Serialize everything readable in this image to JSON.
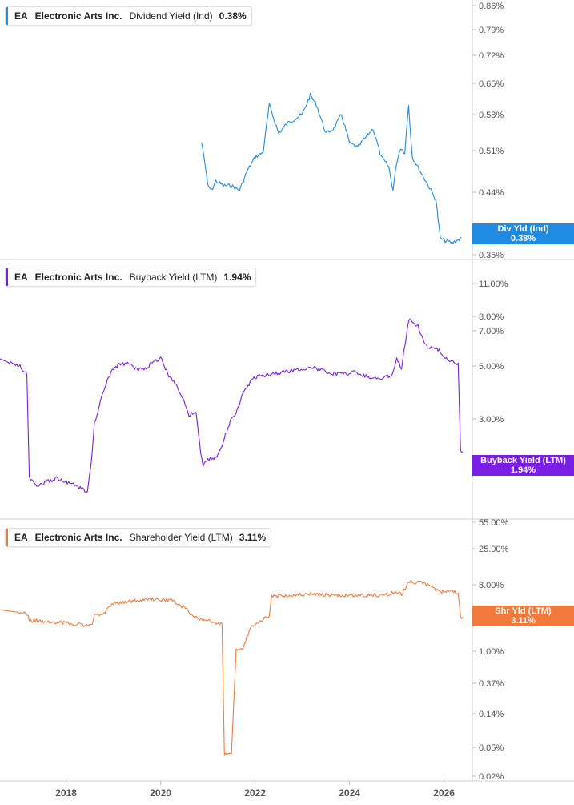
{
  "x_axis": {
    "ticks": [
      "2018",
      "2020",
      "2022",
      "2024",
      "2026"
    ]
  },
  "panels": [
    {
      "ticker": "EA",
      "company": "Electronic Arts Inc.",
      "metric": "Dividend Yield (Ind)",
      "value": "0.38%",
      "color": "#1f8be3",
      "tag_label": "Div Yld (Ind)",
      "tag_value": "0.38%",
      "y_ticks": [
        "0.86%",
        "0.79%",
        "0.72%",
        "0.65%",
        "0.58%",
        "0.51%",
        "0.44%",
        "0.37%",
        "0.35%"
      ]
    },
    {
      "ticker": "EA",
      "company": "Electronic Arts Inc.",
      "metric": "Buyback Yield (LTM)",
      "value": "1.94%",
      "color": "#7a1ee6",
      "tag_label": "Buyback Yield (LTM)",
      "tag_value": "1.94%",
      "y_ticks": [
        "11.00%",
        "8.00%",
        "7.00%",
        "5.00%",
        "3.00%"
      ]
    },
    {
      "ticker": "EA",
      "company": "Electronic Arts Inc.",
      "metric": "Shareholder Yield (LTM)",
      "value": "3.11%",
      "color": "#f07a3c",
      "tag_label": "Shr Yld (LTM)",
      "tag_value": "3.11%",
      "y_ticks": [
        "55.00%",
        "25.00%",
        "8.00%",
        "3.00%",
        "1.00%",
        "0.37%",
        "0.14%",
        "0.05%",
        "0.02%"
      ]
    }
  ],
  "chart_data": [
    {
      "type": "line",
      "title": "EA Electronic Arts Inc. Dividend Yield (Ind)",
      "series": [
        {
          "name": "Dividend Yield (Ind)",
          "last_value": 0.38,
          "x": [
            2020.87,
            2020.92,
            2021.0,
            2021.08,
            2021.17,
            2021.33,
            2021.5,
            2021.67,
            2021.83,
            2022.0,
            2022.17,
            2022.3,
            2022.5,
            2022.67,
            2022.83,
            2023.0,
            2023.17,
            2023.3,
            2023.5,
            2023.67,
            2023.83,
            2024.0,
            2024.17,
            2024.33,
            2024.5,
            2024.67,
            2024.83,
            2024.92,
            2025.0,
            2025.08,
            2025.17,
            2025.25,
            2025.33,
            2025.5,
            2025.67,
            2025.83,
            2025.92,
            2026.0,
            2026.17,
            2026.37
          ],
          "y": [
            0.58,
            0.55,
            0.49,
            0.48,
            0.5,
            0.49,
            0.49,
            0.48,
            0.52,
            0.55,
            0.56,
            0.66,
            0.6,
            0.62,
            0.63,
            0.64,
            0.68,
            0.66,
            0.6,
            0.61,
            0.64,
            0.58,
            0.57,
            0.59,
            0.61,
            0.55,
            0.53,
            0.48,
            0.54,
            0.57,
            0.56,
            0.66,
            0.55,
            0.52,
            0.49,
            0.46,
            0.38,
            0.375,
            0.37,
            0.38
          ]
        }
      ],
      "y_scale": "linear",
      "ylim": [
        0.345,
        0.87
      ],
      "xlim": [
        2016.6,
        2026.6
      ]
    },
    {
      "type": "line",
      "title": "EA Electronic Arts Inc. Buyback Yield (LTM)",
      "series": [
        {
          "name": "Buyback Yield (LTM)",
          "last_value": 1.94,
          "x": [
            2016.6,
            2016.8,
            2017.0,
            2017.17,
            2017.22,
            2017.4,
            2017.6,
            2017.8,
            2018.0,
            2018.2,
            2018.45,
            2018.55,
            2018.6,
            2018.8,
            2018.95,
            2019.1,
            2019.3,
            2019.5,
            2019.7,
            2019.9,
            2020.0,
            2020.15,
            2020.3,
            2020.5,
            2020.6,
            2020.75,
            2020.85,
            2020.9,
            2021.0,
            2021.2,
            2021.5,
            2021.6,
            2021.75,
            2021.9,
            2022.0,
            2022.3,
            2022.6,
            2022.9,
            2023.2,
            2023.5,
            2023.8,
            2024.1,
            2024.4,
            2024.65,
            2024.9,
            2025.0,
            2025.1,
            2025.25,
            2025.3,
            2025.45,
            2025.55,
            2025.65,
            2025.9,
            2026.1,
            2026.3,
            2026.35,
            2026.4
          ],
          "y": [
            4.9,
            4.7,
            4.6,
            4.2,
            1.5,
            1.4,
            1.45,
            1.5,
            1.45,
            1.4,
            1.3,
            1.9,
            2.6,
            3.6,
            4.3,
            4.6,
            4.7,
            4.4,
            4.5,
            4.8,
            5.0,
            4.2,
            3.9,
            3.2,
            2.8,
            2.9,
            1.9,
            1.7,
            1.8,
            1.85,
            2.7,
            2.9,
            3.5,
            3.9,
            4.1,
            4.2,
            4.3,
            4.4,
            4.5,
            4.3,
            4.2,
            4.3,
            4.1,
            4.0,
            4.2,
            4.9,
            4.5,
            7.2,
            7.1,
            6.8,
            6.0,
            5.5,
            5.3,
            4.8,
            4.7,
            1.94,
            1.94
          ]
        }
      ],
      "y_scale": "log",
      "ylim": [
        1.05,
        12.5
      ],
      "xlim": [
        2016.6,
        2026.6
      ]
    },
    {
      "type": "line",
      "title": "EA Electronic Arts Inc. Shareholder Yield (LTM)",
      "series": [
        {
          "name": "Shareholder Yield (LTM)",
          "last_value": 3.11,
          "x": [
            2016.6,
            2017.0,
            2017.17,
            2017.22,
            2017.5,
            2017.8,
            2018.1,
            2018.4,
            2018.55,
            2018.6,
            2018.8,
            2018.95,
            2019.2,
            2019.5,
            2019.9,
            2020.2,
            2020.5,
            2020.6,
            2020.85,
            2021.0,
            2021.3,
            2021.35,
            2021.45,
            2021.5,
            2021.6,
            2021.75,
            2021.9,
            2022.1,
            2022.3,
            2022.35,
            2022.8,
            2023.3,
            2023.8,
            2024.3,
            2024.8,
            2025.0,
            2025.1,
            2025.25,
            2025.6,
            2025.9,
            2026.1,
            2026.3,
            2026.35,
            2026.4
          ],
          "y": [
            3.9,
            3.6,
            3.4,
            2.8,
            2.7,
            2.6,
            2.5,
            2.4,
            2.3,
            3.2,
            3.5,
            4.6,
            5.0,
            5.2,
            5.4,
            5.3,
            4.2,
            3.6,
            2.9,
            2.7,
            2.5,
            0.04,
            0.04,
            0.04,
            1.1,
            1.2,
            2.2,
            2.6,
            3.3,
            6.0,
            6.2,
            6.4,
            6.1,
            6.2,
            6.3,
            6.8,
            6.2,
            9.5,
            9.0,
            7.0,
            6.9,
            6.7,
            3.11,
            3.11
          ]
        }
      ],
      "y_scale": "log",
      "ylim": [
        0.0195,
        60
      ],
      "xlim": [
        2016.6,
        2026.6
      ]
    }
  ]
}
